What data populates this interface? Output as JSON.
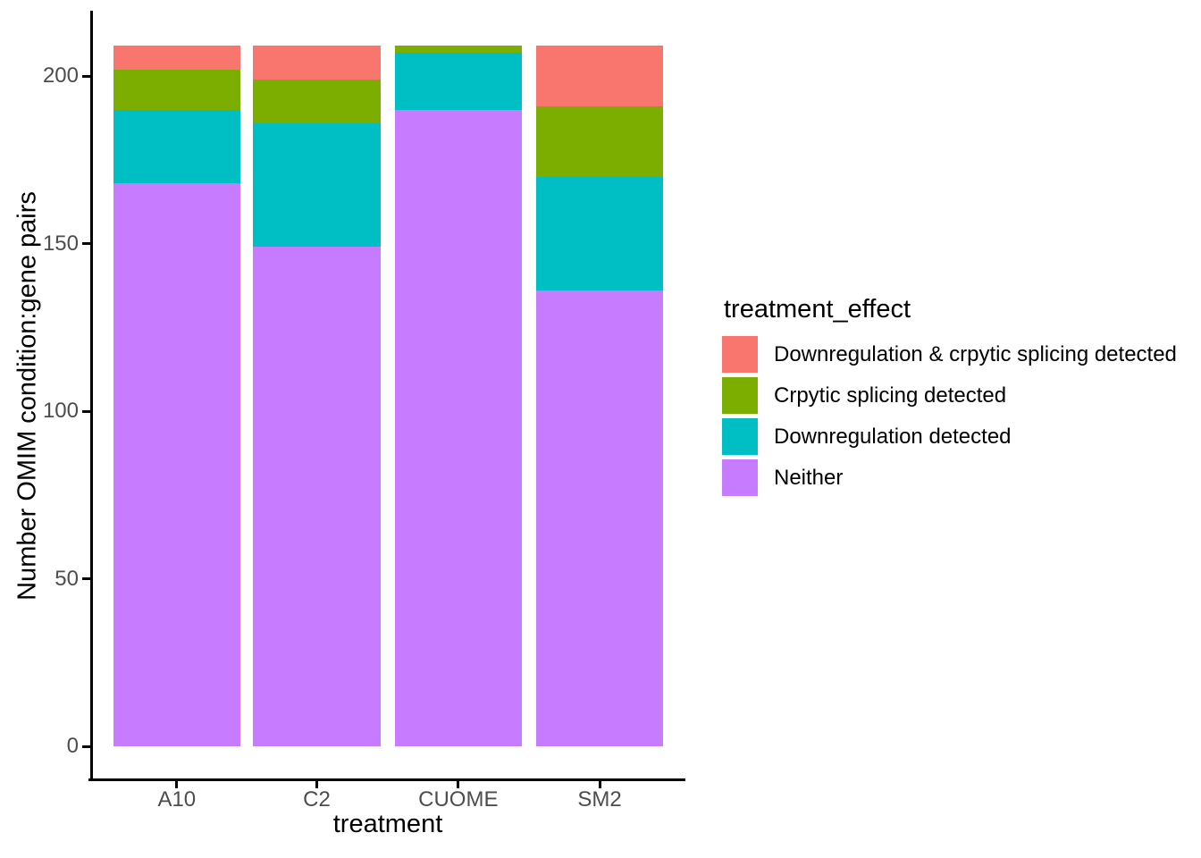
{
  "chart_data": {
    "type": "bar",
    "stacked": true,
    "xlabel": "treatment",
    "ylabel": "Number OMIM condition:gene pairs",
    "categories": [
      "A10",
      "C2",
      "CUOME",
      "SM2"
    ],
    "series": [
      {
        "name": "Downregulation & crpytic splicing detected",
        "color": "#F8766D",
        "values": [
          7,
          10,
          0,
          18
        ]
      },
      {
        "name": "Crpytic splicing detected",
        "color": "#7CAE00",
        "values": [
          12,
          13,
          2,
          21
        ]
      },
      {
        "name": "Downregulation detected",
        "color": "#00BFC4",
        "values": [
          22,
          37,
          17,
          34
        ]
      },
      {
        "name": "Neither",
        "color": "#C77CFF",
        "values": [
          168,
          149,
          190,
          136
        ]
      }
    ],
    "bar_totals": [
      209,
      209,
      209,
      209
    ],
    "y_ticks": [
      0,
      50,
      100,
      150,
      200
    ],
    "ylim": [
      0,
      219
    ],
    "grid": false,
    "legend": {
      "title": "treatment_effect",
      "position": "right"
    },
    "colors": {
      "axis_line": "#000000",
      "tick_label": "#4D4D4D",
      "title_text": "#000000",
      "background": "#FFFFFF"
    }
  }
}
